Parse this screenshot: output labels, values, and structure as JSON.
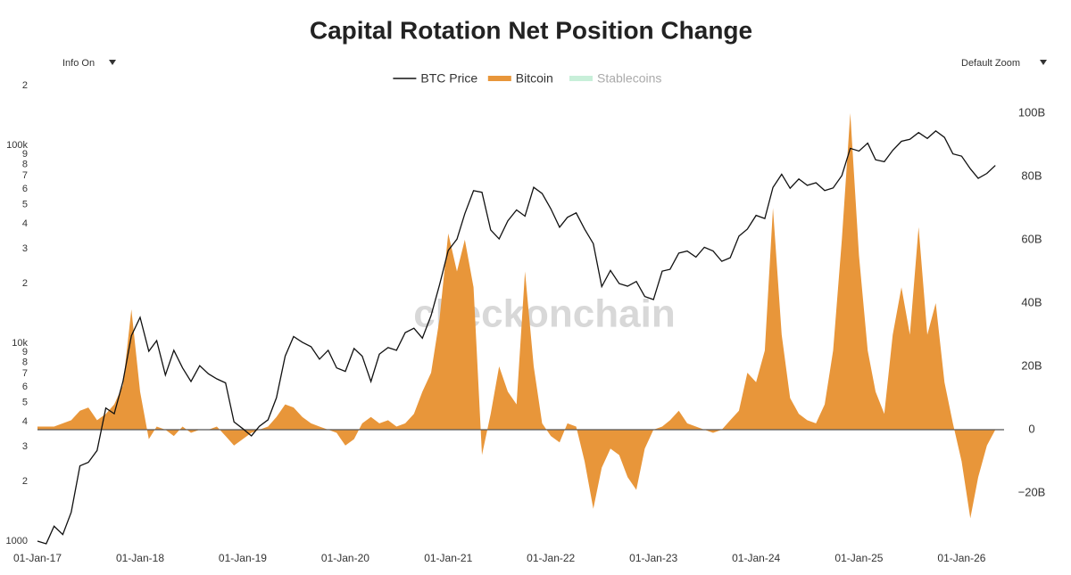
{
  "ui": {
    "info_toggle": "Info On",
    "zoom_select": "Default Zoom",
    "watermark": "checkonchain"
  },
  "chart_data": {
    "type": "line-area",
    "title": "Capital Rotation Net Position Change",
    "x": [
      "2017-01-01",
      "2017-02-01",
      "2017-03-01",
      "2017-04-01",
      "2017-05-01",
      "2017-06-01",
      "2017-07-01",
      "2017-08-01",
      "2017-09-01",
      "2017-10-01",
      "2017-11-01",
      "2017-12-01",
      "2018-01-01",
      "2018-02-01",
      "2018-03-01",
      "2018-04-01",
      "2018-05-01",
      "2018-06-01",
      "2018-07-01",
      "2018-08-01",
      "2018-09-01",
      "2018-10-01",
      "2018-11-01",
      "2018-12-01",
      "2019-01-01",
      "2019-02-01",
      "2019-03-01",
      "2019-04-01",
      "2019-05-01",
      "2019-06-01",
      "2019-07-01",
      "2019-08-01",
      "2019-09-01",
      "2019-10-01",
      "2019-11-01",
      "2019-12-01",
      "2020-01-01",
      "2020-02-01",
      "2020-03-01",
      "2020-04-01",
      "2020-05-01",
      "2020-06-01",
      "2020-07-01",
      "2020-08-01",
      "2020-09-01",
      "2020-10-01",
      "2020-11-01",
      "2020-12-01",
      "2021-01-01",
      "2021-02-01",
      "2021-03-01",
      "2021-04-01",
      "2021-05-01",
      "2021-06-01",
      "2021-07-01",
      "2021-08-01",
      "2021-09-01",
      "2021-10-01",
      "2021-11-01",
      "2021-12-01",
      "2022-01-01",
      "2022-02-01",
      "2022-03-01",
      "2022-04-01",
      "2022-05-01",
      "2022-06-01",
      "2022-07-01",
      "2022-08-01",
      "2022-09-01",
      "2022-10-01",
      "2022-11-01",
      "2022-12-01",
      "2023-01-01",
      "2023-02-01",
      "2023-03-01",
      "2023-04-01",
      "2023-05-01",
      "2023-06-01",
      "2023-07-01",
      "2023-08-01",
      "2023-09-01",
      "2023-10-01",
      "2023-11-01",
      "2023-12-01",
      "2024-01-01",
      "2024-02-01",
      "2024-03-01",
      "2024-04-01",
      "2024-05-01",
      "2024-06-01",
      "2024-07-01",
      "2024-08-01",
      "2024-09-01",
      "2024-10-01",
      "2024-11-01",
      "2024-12-01",
      "2025-01-01",
      "2025-02-01",
      "2025-03-01",
      "2025-04-01",
      "2025-05-01",
      "2025-06-01",
      "2025-07-01",
      "2025-08-01",
      "2025-09-01",
      "2025-10-01",
      "2025-11-01",
      "2025-12-01",
      "2026-01-01",
      "2026-02-01",
      "2026-03-01",
      "2026-04-01",
      "2026-05-01"
    ],
    "series": [
      {
        "name": "BTC Price",
        "color": "#111111",
        "kind": "line",
        "axis": "y",
        "values": [
          1000,
          970,
          1190,
          1080,
          1400,
          2400,
          2500,
          2870,
          4700,
          4400,
          6400,
          10900,
          13500,
          9100,
          10300,
          6900,
          9200,
          7500,
          6400,
          7700,
          7000,
          6600,
          6300,
          4000,
          3700,
          3400,
          3800,
          4100,
          5300,
          8600,
          10800,
          10100,
          9600,
          8300,
          9200,
          7500,
          7200,
          9400,
          8600,
          6400,
          8800,
          9500,
          9200,
          11300,
          11900,
          10600,
          13800,
          19700,
          29400,
          33500,
          45100,
          58900,
          57800,
          37300,
          33600,
          41500,
          47100,
          43800,
          61300,
          57000,
          47700,
          38500,
          43200,
          45500,
          37700,
          31800,
          19300,
          23300,
          20000,
          19400,
          20500,
          17200,
          16600,
          23100,
          23600,
          28500,
          29200,
          27200,
          30500,
          29200,
          25900,
          27000,
          34700,
          37700,
          44200,
          42600,
          61200,
          71300,
          60600,
          67500,
          62700,
          64600,
          59000,
          60800,
          70200,
          96400,
          93400,
          102400,
          84400,
          82500,
          94200,
          104600,
          107100,
          115800,
          108200,
          118000,
          109500,
          90400,
          88000,
          76000,
          68000,
          72000,
          79000
        ]
      },
      {
        "name": "Bitcoin",
        "color": "#e8963a",
        "kind": "area",
        "axis": "y2",
        "values": [
          1,
          1,
          1,
          2,
          3,
          6,
          7,
          3,
          5,
          8,
          14,
          38,
          12,
          -3,
          1,
          0,
          -2,
          1,
          -1,
          0,
          0,
          1,
          -2,
          -5,
          -3,
          -1,
          0,
          1,
          4,
          8,
          7,
          4,
          2,
          1,
          0,
          -1,
          -5,
          -3,
          2,
          4,
          2,
          3,
          1,
          2,
          5,
          12,
          18,
          35,
          62,
          50,
          60,
          45,
          -8,
          5,
          20,
          12,
          8,
          50,
          20,
          2,
          -2,
          -4,
          2,
          1,
          -10,
          -25,
          -12,
          -6,
          -8,
          -15,
          -19,
          -6,
          0,
          1,
          3,
          6,
          2,
          1,
          0,
          -1,
          0,
          3,
          6,
          18,
          15,
          25,
          70,
          30,
          10,
          5,
          3,
          2,
          8,
          25,
          60,
          100,
          55,
          25,
          12,
          5,
          30,
          45,
          30,
          64,
          30,
          40,
          15,
          2,
          -10,
          -28,
          -15,
          -5,
          0
        ]
      },
      {
        "name": "Stablecoins",
        "color": "#c8efd9",
        "kind": "area",
        "axis": "y2",
        "visible": false
      }
    ],
    "xlim": [
      "2017-01-01",
      "2026-06-01"
    ],
    "xticks": [
      {
        "value": "2017-01-01",
        "label": "01-Jan-17"
      },
      {
        "value": "2018-01-01",
        "label": "01-Jan-18"
      },
      {
        "value": "2019-01-01",
        "label": "01-Jan-19"
      },
      {
        "value": "2020-01-01",
        "label": "01-Jan-20"
      },
      {
        "value": "2021-01-01",
        "label": "01-Jan-21"
      },
      {
        "value": "2022-01-01",
        "label": "01-Jan-22"
      },
      {
        "value": "2023-01-01",
        "label": "01-Jan-23"
      },
      {
        "value": "2024-01-01",
        "label": "01-Jan-24"
      },
      {
        "value": "2025-01-01",
        "label": "01-Jan-25"
      },
      {
        "value": "2026-01-01",
        "label": "01-Jan-26"
      }
    ],
    "ylog": true,
    "ylim": [
      1000,
      200000
    ],
    "yticks": [
      1000,
      {
        "value": 2000,
        "label": "2"
      },
      {
        "value": 3000,
        "label": "3"
      },
      {
        "value": 4000,
        "label": "4"
      },
      {
        "value": 5000,
        "label": "5"
      },
      {
        "value": 6000,
        "label": "6"
      },
      {
        "value": 7000,
        "label": "7"
      },
      {
        "value": 8000,
        "label": "8"
      },
      {
        "value": 9000,
        "label": "9"
      },
      {
        "value": 10000,
        "label": "10k"
      },
      {
        "value": 20000,
        "label": "2"
      },
      {
        "value": 30000,
        "label": "3"
      },
      {
        "value": 40000,
        "label": "4"
      },
      {
        "value": 50000,
        "label": "5"
      },
      {
        "value": 60000,
        "label": "6"
      },
      {
        "value": 70000,
        "label": "7"
      },
      {
        "value": 80000,
        "label": "8"
      },
      {
        "value": 90000,
        "label": "9"
      },
      {
        "value": 100000,
        "label": "100k"
      },
      {
        "value": 200000,
        "label": "2"
      }
    ],
    "y2lim": [
      -35.2,
      108.7
    ],
    "y2ticks": [
      {
        "value": -20,
        "label": "−20B"
      },
      0,
      {
        "value": 20,
        "label": "20B"
      },
      {
        "value": 40,
        "label": "40B"
      },
      {
        "value": 60,
        "label": "60B"
      },
      {
        "value": 80,
        "label": "80B"
      },
      {
        "value": 100,
        "label": "100B"
      }
    ],
    "grid": false,
    "legend": "top"
  }
}
